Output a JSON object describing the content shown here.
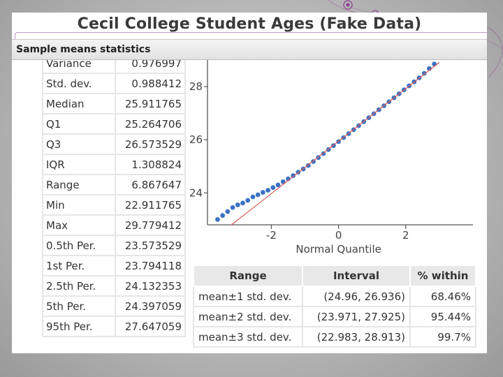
{
  "slide": {
    "title": "Cecil College Student Ages (Fake Data)",
    "section_header": "Sample means statistics",
    "accent_color": "#8e3a8e"
  },
  "stats": {
    "rows": [
      {
        "label": "Variance",
        "value": "0.976997"
      },
      {
        "label": "Std. dev.",
        "value": "0.988412"
      },
      {
        "label": "Median",
        "value": "25.911765"
      },
      {
        "label": "Q1",
        "value": "25.264706"
      },
      {
        "label": "Q3",
        "value": "26.573529"
      },
      {
        "label": "IQR",
        "value": "1.308824"
      },
      {
        "label": "Range",
        "value": "6.867647"
      },
      {
        "label": "Min",
        "value": "22.911765"
      },
      {
        "label": "Max",
        "value": "29.779412"
      },
      {
        "label": "0.5th Per.",
        "value": "23.573529"
      },
      {
        "label": "1st Per.",
        "value": "23.794118"
      },
      {
        "label": "2.5th Per.",
        "value": "24.132353"
      },
      {
        "label": "5th Per.",
        "value": "24.397059"
      },
      {
        "label": "95th Per.",
        "value": "27.647059"
      }
    ]
  },
  "intervals": {
    "headers": [
      "Range",
      "Interval",
      "% within"
    ],
    "rows": [
      {
        "range": "mean±1 std. dev.",
        "interval": "(24.96, 26.936)",
        "within": "68.46%"
      },
      {
        "range": "mean±2 std. dev.",
        "interval": "(23.971, 27.925)",
        "within": "95.44%"
      },
      {
        "range": "mean±3 std. dev.",
        "interval": "(22.983, 28.913)",
        "within": "99.7%"
      }
    ]
  },
  "chart_data": {
    "type": "scatter",
    "title": "",
    "xlabel": "Normal Quantile",
    "ylabel": "",
    "xlim": [
      -3.9,
      4.0
    ],
    "ylim": [
      22.8,
      29.0
    ],
    "x_ticks": [
      "-2",
      "0",
      "2"
    ],
    "x_tick_values": [
      -2,
      0,
      2
    ],
    "y_ticks": [
      "24",
      "26",
      "28"
    ],
    "y_tick_values": [
      24,
      26,
      28
    ],
    "point_color": "#3b73c4",
    "reference_line_color": "#e05a5a",
    "reference_line": {
      "intercept": 25.948,
      "slope": 0.988
    },
    "series": [
      {
        "points": [
          [
            -3.6,
            23.0
          ],
          [
            -3.45,
            23.15
          ],
          [
            -3.3,
            23.3
          ],
          [
            -3.15,
            23.45
          ],
          [
            -3.0,
            23.55
          ],
          [
            -2.85,
            23.62
          ],
          [
            -2.7,
            23.72
          ],
          [
            -2.55,
            23.85
          ],
          [
            -2.4,
            23.93
          ],
          [
            -2.25,
            24.02
          ],
          [
            -2.1,
            24.1
          ],
          [
            -1.95,
            24.2
          ],
          [
            -1.8,
            24.3
          ],
          [
            -1.65,
            24.42
          ],
          [
            -1.5,
            24.53
          ],
          [
            -1.35,
            24.65
          ],
          [
            -1.2,
            24.78
          ],
          [
            -1.05,
            24.9
          ],
          [
            -0.9,
            25.03
          ],
          [
            -0.75,
            25.18
          ],
          [
            -0.6,
            25.33
          ],
          [
            -0.45,
            25.48
          ],
          [
            -0.3,
            25.63
          ],
          [
            -0.15,
            25.78
          ],
          [
            0.0,
            25.93
          ],
          [
            0.15,
            26.08
          ],
          [
            0.3,
            26.23
          ],
          [
            0.45,
            26.38
          ],
          [
            0.6,
            26.53
          ],
          [
            0.75,
            26.68
          ],
          [
            0.9,
            26.83
          ],
          [
            1.05,
            26.98
          ],
          [
            1.2,
            27.13
          ],
          [
            1.35,
            27.28
          ],
          [
            1.5,
            27.43
          ],
          [
            1.65,
            27.58
          ],
          [
            1.8,
            27.73
          ],
          [
            1.95,
            27.88
          ],
          [
            2.1,
            28.03
          ],
          [
            2.25,
            28.18
          ],
          [
            2.4,
            28.33
          ],
          [
            2.55,
            28.5
          ],
          [
            2.7,
            28.68
          ],
          [
            2.85,
            28.85
          ]
        ]
      }
    ]
  }
}
